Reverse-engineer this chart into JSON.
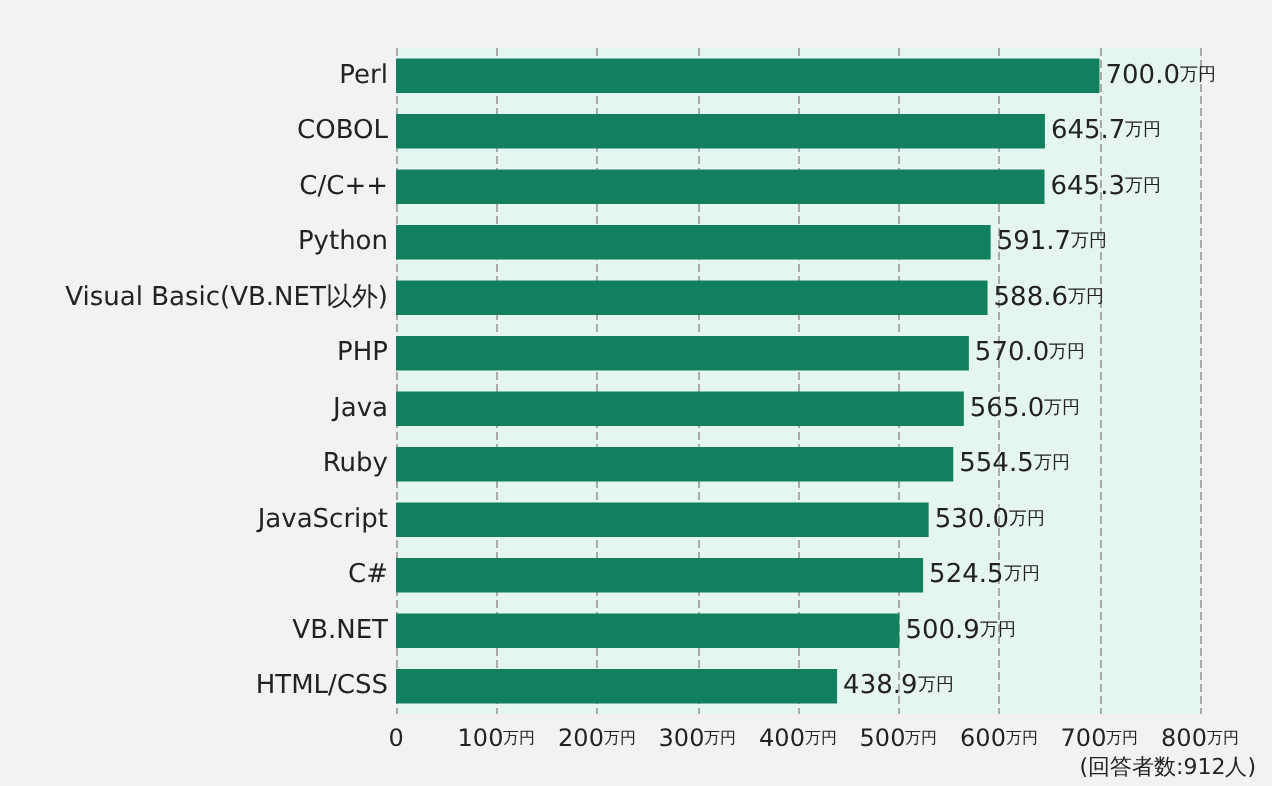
{
  "chart_data": {
    "type": "bar",
    "orientation": "horizontal",
    "categories": [
      "Perl",
      "COBOL",
      "C/C++",
      "Python",
      "Visual Basic(VB.NET以外)",
      "PHP",
      "Java",
      "Ruby",
      "JavaScript",
      "C#",
      "VB.NET",
      "HTML/CSS"
    ],
    "values": [
      700.0,
      645.7,
      645.3,
      591.7,
      588.6,
      570.0,
      565.0,
      554.5,
      530.0,
      524.5,
      500.9,
      438.9
    ],
    "value_labels": [
      "700.0万円",
      "645.7万円",
      "645.3万円",
      "591.7万円",
      "588.6万円",
      "570.0万円",
      "565.0万円",
      "554.5万円",
      "530.0万円",
      "524.5万円",
      "500.9万円",
      "438.9万円"
    ],
    "color": "#12805e",
    "xlim": [
      0,
      800
    ],
    "xticks": [
      0,
      {
        "value": 100,
        "label": "100万円"
      },
      {
        "value": 200,
        "label": "200万円"
      },
      {
        "value": 300,
        "label": "300万円"
      },
      {
        "value": 400,
        "label": "400万円"
      },
      {
        "value": 500,
        "label": "500万円"
      },
      {
        "value": 600,
        "label": "600万円"
      },
      {
        "value": 700,
        "label": "700万円"
      },
      {
        "value": 800,
        "label": "800万円"
      }
    ],
    "grid": "x",
    "annotations": [
      "(回答者数:912人)"
    ]
  }
}
